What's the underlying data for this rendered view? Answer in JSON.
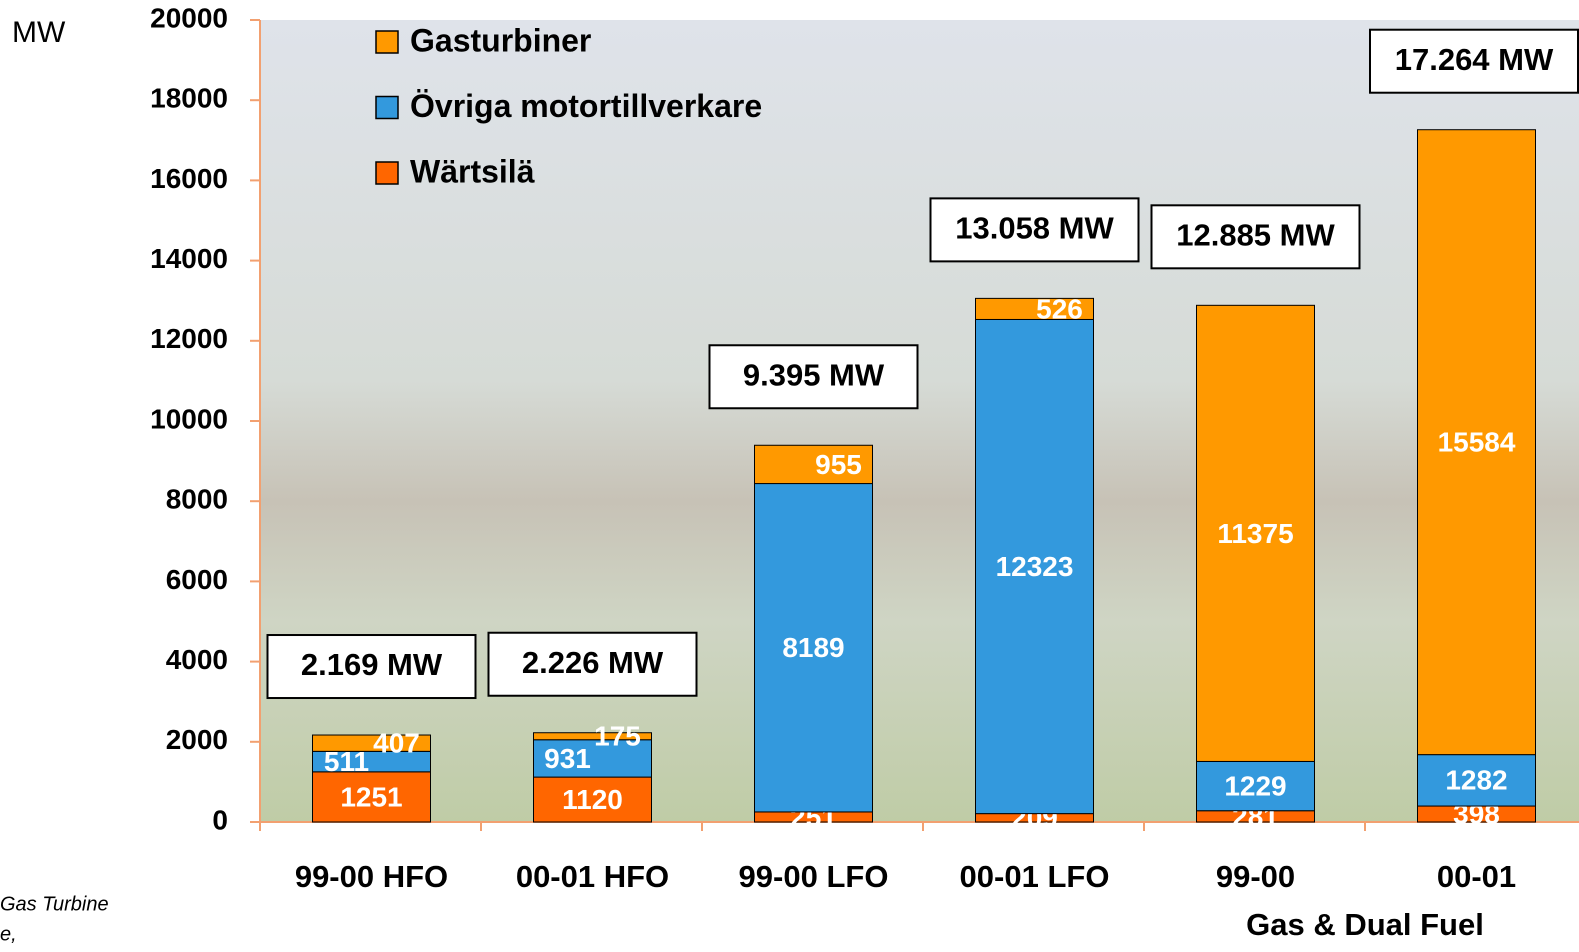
{
  "chart_data": {
    "type": "stacked-bar",
    "y_unit": "MW",
    "categories": [
      "99-00 HFO",
      "00-01 HFO",
      "99-00 LFO",
      "00-01 LFO",
      "99-00",
      "00-01"
    ],
    "category_group": "Gas & Dual Fuel",
    "series": [
      {
        "name": "Wärtsilä",
        "color": "#ff6600",
        "values": [
          1251,
          1120,
          251,
          209,
          281,
          398
        ]
      },
      {
        "name": "Övriga motortillverkare",
        "color": "#3399dd",
        "values": [
          511,
          931,
          8189,
          12323,
          1229,
          1282
        ]
      },
      {
        "name": "Gasturbiner",
        "color": "#ff9900",
        "values": [
          407,
          175,
          955,
          526,
          11375,
          15584
        ]
      }
    ],
    "totals": [
      "2.169 MW",
      "2.226 MW",
      "9.395 MW",
      "13.058 MW",
      "12.885 MW",
      "17.264 MW"
    ],
    "ylim": [
      0,
      20000
    ],
    "yticks": [
      0,
      2000,
      4000,
      6000,
      8000,
      10000,
      12000,
      14000,
      16000,
      18000,
      20000
    ],
    "footnote": [
      "Gas Turbine",
      "e,"
    ]
  }
}
